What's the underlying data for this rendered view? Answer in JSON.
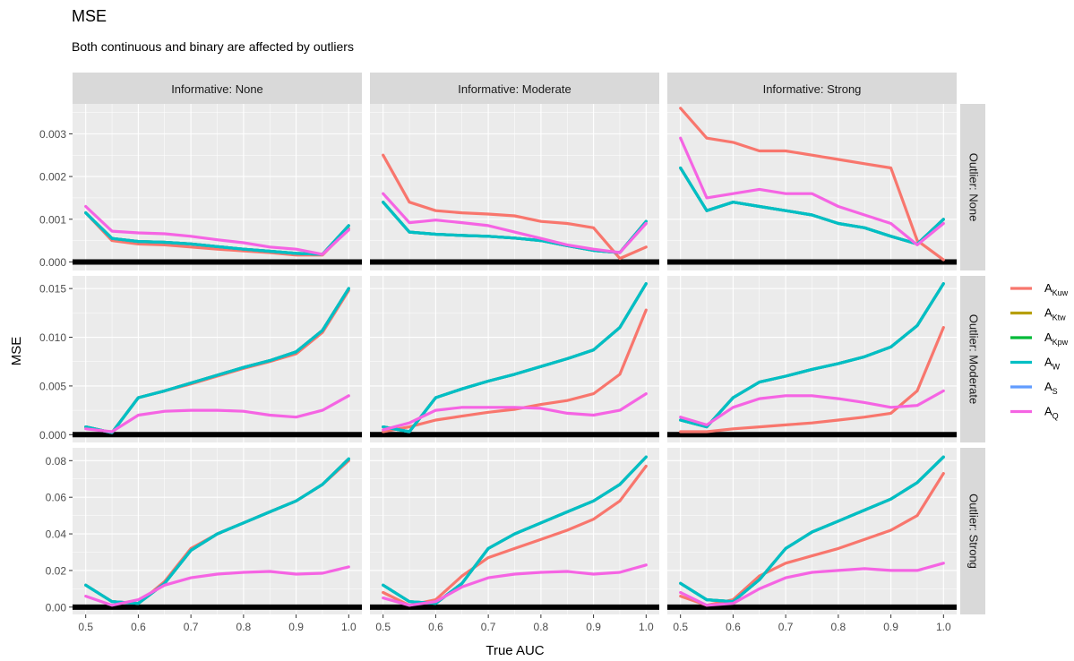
{
  "chart_data": {
    "type": "line",
    "title": "MSE",
    "subtitle": "Both continuous and binary are affected by outliers",
    "xlabel": "True AUC",
    "ylabel": "MSE",
    "col_strips": [
      "Informative: None",
      "Informative: Moderate",
      "Informative: Strong"
    ],
    "row_strips": [
      "Outlier: None",
      "Outlier: Moderate",
      "Outlier: Strong"
    ],
    "xlim": [
      0.475,
      1.025
    ],
    "xticks": [
      0.5,
      0.6,
      0.7,
      0.8,
      0.9,
      1.0
    ],
    "xtick_labels": [
      "0.5",
      "0.6",
      "0.7",
      "0.8",
      "0.9",
      "1.0"
    ],
    "rows": [
      {
        "ylim": [
          -0.0002,
          0.0037
        ],
        "yticks": [
          0,
          0.001,
          0.002,
          0.003
        ],
        "ytick_labels": [
          "0.000",
          "0.001",
          "0.002",
          "0.003"
        ]
      },
      {
        "ylim": [
          -0.0008,
          0.0163
        ],
        "yticks": [
          0,
          0.005,
          0.01,
          0.015
        ],
        "ytick_labels": [
          "0.000",
          "0.005",
          "0.010",
          "0.015"
        ]
      },
      {
        "ylim": [
          -0.004,
          0.087
        ],
        "yticks": [
          0,
          0.02,
          0.04,
          0.06,
          0.08
        ],
        "ytick_labels": [
          "0.00",
          "0.02",
          "0.04",
          "0.06",
          "0.08"
        ]
      }
    ],
    "legend": {
      "position": "right",
      "entries": [
        {
          "base": "A",
          "sub": "Kuw",
          "color": "#F8766D"
        },
        {
          "base": "A",
          "sub": "Ktw",
          "color": "#B79F00"
        },
        {
          "base": "A",
          "sub": "Kpw",
          "color": "#00BA38"
        },
        {
          "base": "A",
          "sub": "W",
          "color": "#00BFC4"
        },
        {
          "base": "A",
          "sub": "S",
          "color": "#619CFF"
        },
        {
          "base": "A",
          "sub": "Q",
          "color": "#F564E3"
        }
      ]
    },
    "x": [
      0.5,
      0.55,
      0.6,
      0.65,
      0.7,
      0.75,
      0.8,
      0.85,
      0.9,
      0.95,
      1.0
    ],
    "panels": [
      {
        "row": 0,
        "col": 0,
        "series": {
          "Kuw": [
            0.00115,
            0.0005,
            0.00042,
            0.0004,
            0.00035,
            0.0003,
            0.00026,
            0.00022,
            0.00016,
            0.00016,
            0.00078
          ],
          "W": [
            0.00115,
            0.00055,
            0.00048,
            0.00046,
            0.00042,
            0.00036,
            0.0003,
            0.00025,
            0.0002,
            0.00018,
            0.00085
          ],
          "Q": [
            0.0013,
            0.00072,
            0.00068,
            0.00066,
            0.0006,
            0.00052,
            0.00045,
            0.00035,
            0.0003,
            0.00018,
            0.00075
          ]
        }
      },
      {
        "row": 0,
        "col": 1,
        "series": {
          "Kuw": [
            0.0025,
            0.0014,
            0.0012,
            0.00115,
            0.00112,
            0.00108,
            0.00095,
            0.0009,
            0.0008,
            8e-05,
            0.00035
          ],
          "W": [
            0.0014,
            0.0007,
            0.00065,
            0.00062,
            0.0006,
            0.00056,
            0.0005,
            0.00038,
            0.00027,
            0.00022,
            0.00095
          ],
          "Q": [
            0.0016,
            0.00092,
            0.00098,
            0.00092,
            0.00085,
            0.0007,
            0.00055,
            0.0004,
            0.0003,
            0.00022,
            0.0009
          ]
        }
      },
      {
        "row": 0,
        "col": 2,
        "series": {
          "Kuw": [
            0.0036,
            0.0029,
            0.0028,
            0.0026,
            0.0026,
            0.0025,
            0.0024,
            0.0023,
            0.0022,
            0.0005,
            5e-05
          ],
          "W": [
            0.0022,
            0.0012,
            0.0014,
            0.0013,
            0.0012,
            0.0011,
            0.0009,
            0.0008,
            0.0006,
            0.00042,
            0.001
          ],
          "Q": [
            0.0029,
            0.0015,
            0.0016,
            0.0017,
            0.0016,
            0.0016,
            0.0013,
            0.0011,
            0.0009,
            0.0004,
            0.0009
          ]
        }
      },
      {
        "row": 1,
        "col": 0,
        "series": {
          "Kuw": [
            0.0008,
            0.0002,
            0.0038,
            0.0045,
            0.0052,
            0.006,
            0.0068,
            0.0075,
            0.0083,
            0.0105,
            0.0148
          ],
          "W": [
            0.0008,
            0.0002,
            0.0038,
            0.0045,
            0.0053,
            0.0061,
            0.0069,
            0.0076,
            0.0085,
            0.0107,
            0.015
          ],
          "Q": [
            0.0006,
            0.0003,
            0.002,
            0.0024,
            0.0025,
            0.0025,
            0.0024,
            0.002,
            0.0018,
            0.0025,
            0.004
          ]
        }
      },
      {
        "row": 1,
        "col": 1,
        "series": {
          "Kuw": [
            0.0003,
            0.0008,
            0.0015,
            0.0019,
            0.0023,
            0.0026,
            0.0031,
            0.0035,
            0.0042,
            0.0062,
            0.0128
          ],
          "W": [
            0.0008,
            0.0003,
            0.0038,
            0.0047,
            0.0055,
            0.0062,
            0.007,
            0.0078,
            0.0087,
            0.011,
            0.0155
          ],
          "Q": [
            0.0005,
            0.0012,
            0.0025,
            0.0028,
            0.0028,
            0.0028,
            0.0027,
            0.0022,
            0.002,
            0.0025,
            0.0042
          ]
        }
      },
      {
        "row": 1,
        "col": 2,
        "series": {
          "Kuw": [
            0.0003,
            0.0003,
            0.0006,
            0.0008,
            0.001,
            0.0012,
            0.0015,
            0.0018,
            0.0022,
            0.0045,
            0.011
          ],
          "W": [
            0.0015,
            0.0008,
            0.0038,
            0.0054,
            0.006,
            0.0067,
            0.0073,
            0.008,
            0.009,
            0.0112,
            0.0155
          ],
          "Q": [
            0.0018,
            0.001,
            0.0028,
            0.0037,
            0.004,
            0.004,
            0.0037,
            0.0033,
            0.0028,
            0.003,
            0.0045
          ]
        }
      },
      {
        "row": 2,
        "col": 0,
        "series": {
          "Kuw": [
            0.012,
            0.003,
            0.002,
            0.014,
            0.032,
            0.04,
            0.046,
            0.052,
            0.058,
            0.067,
            0.08
          ],
          "W": [
            0.012,
            0.003,
            0.002,
            0.013,
            0.031,
            0.04,
            0.046,
            0.052,
            0.058,
            0.067,
            0.081
          ],
          "Q": [
            0.006,
            0.001,
            0.004,
            0.012,
            0.016,
            0.018,
            0.019,
            0.0195,
            0.018,
            0.0185,
            0.022
          ]
        }
      },
      {
        "row": 2,
        "col": 1,
        "series": {
          "Kuw": [
            0.008,
            0.001,
            0.004,
            0.017,
            0.027,
            0.032,
            0.037,
            0.042,
            0.048,
            0.058,
            0.077
          ],
          "W": [
            0.012,
            0.003,
            0.002,
            0.013,
            0.032,
            0.04,
            0.046,
            0.052,
            0.058,
            0.067,
            0.082
          ],
          "Q": [
            0.005,
            0.001,
            0.003,
            0.011,
            0.016,
            0.018,
            0.019,
            0.0195,
            0.018,
            0.019,
            0.023
          ]
        }
      },
      {
        "row": 2,
        "col": 2,
        "series": {
          "Kuw": [
            0.006,
            0.001,
            0.004,
            0.017,
            0.024,
            0.028,
            0.032,
            0.037,
            0.042,
            0.05,
            0.073
          ],
          "W": [
            0.013,
            0.004,
            0.003,
            0.015,
            0.032,
            0.041,
            0.047,
            0.053,
            0.059,
            0.068,
            0.082
          ],
          "Q": [
            0.008,
            0.001,
            0.002,
            0.01,
            0.016,
            0.019,
            0.02,
            0.021,
            0.02,
            0.02,
            0.024
          ]
        }
      }
    ]
  }
}
